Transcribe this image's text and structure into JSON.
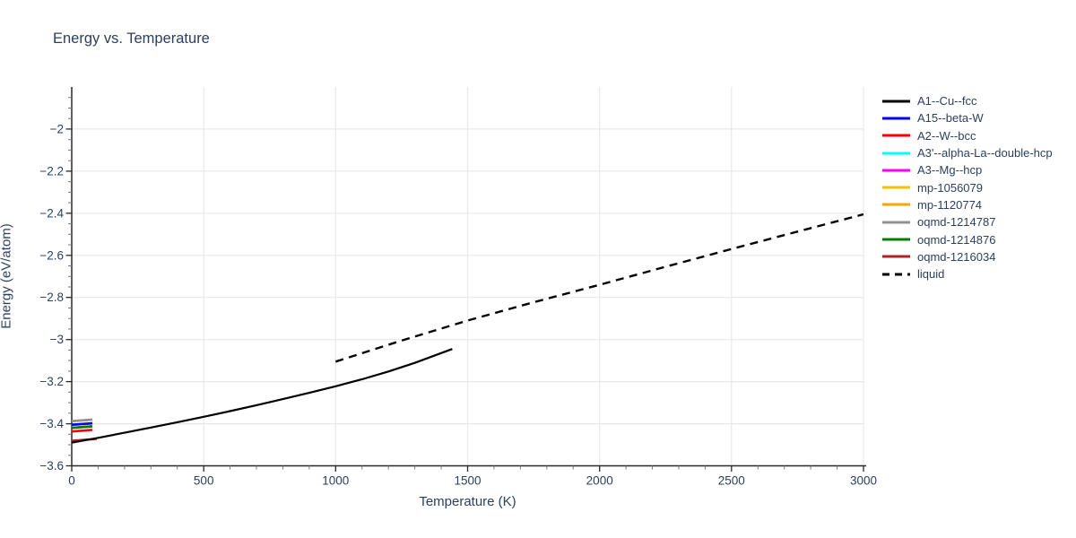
{
  "chart_data": {
    "type": "line",
    "title": "Energy vs. Temperature",
    "xlabel": "Temperature (K)",
    "ylabel": "Energy (eV/atom)",
    "xlim": [
      0,
      3000
    ],
    "ylim": [
      -3.6,
      -1.8
    ],
    "grid": true,
    "legend_position": "top-right",
    "x_ticks": [
      0,
      500,
      1000,
      1500,
      2000,
      2500,
      3000
    ],
    "x_tick_labels": [
      "0",
      "500",
      "1000",
      "1500",
      "2000",
      "2500",
      "3000"
    ],
    "x_minor_step": 100,
    "y_ticks": [
      -3.6,
      -3.4,
      -3.2,
      -3,
      -2.8,
      -2.6,
      -2.4,
      -2.2,
      -2
    ],
    "y_tick_labels": [
      "−3.6",
      "−3.4",
      "−3.2",
      "−3",
      "−2.8",
      "−2.6",
      "−2.4",
      "−2.2",
      "−2"
    ],
    "y_minor_step": 0.05,
    "axis_color": "#2a2a2a",
    "grid_color": "#e8e8e8",
    "text_color": "#2a3f5f",
    "draw_order": [
      3,
      4,
      5,
      6,
      7,
      1,
      8,
      2,
      9,
      0,
      10
    ],
    "series": [
      {
        "name": "A1--Cu--fcc",
        "color": "#000000",
        "dash": "solid",
        "points": [
          [
            0,
            -3.49
          ],
          [
            100,
            -3.467
          ],
          [
            200,
            -3.443
          ],
          [
            300,
            -3.418
          ],
          [
            400,
            -3.393
          ],
          [
            500,
            -3.367
          ],
          [
            600,
            -3.34
          ],
          [
            700,
            -3.312
          ],
          [
            800,
            -3.283
          ],
          [
            900,
            -3.253
          ],
          [
            1000,
            -3.222
          ],
          [
            1100,
            -3.189
          ],
          [
            1200,
            -3.152
          ],
          [
            1300,
            -3.111
          ],
          [
            1442,
            -3.045
          ]
        ]
      },
      {
        "name": "A15--beta-W",
        "color": "#0000ff",
        "dash": "solid",
        "points": [
          [
            0,
            -3.405
          ],
          [
            78,
            -3.398
          ]
        ]
      },
      {
        "name": "A2--W--bcc",
        "color": "#ff0000",
        "dash": "solid",
        "points": [
          [
            0,
            -3.437
          ],
          [
            78,
            -3.429
          ]
        ]
      },
      {
        "name": "A3'--alpha-La--double-hcp",
        "color": "#00ffff",
        "dash": "solid",
        "points": [
          [
            0,
            -3.405
          ],
          [
            78,
            -3.398
          ]
        ]
      },
      {
        "name": "A3--Mg--hcp",
        "color": "#ff00ff",
        "dash": "solid",
        "points": [
          [
            0,
            -3.42
          ],
          [
            78,
            -3.413
          ]
        ]
      },
      {
        "name": "mp-1056079",
        "color": "#eec500",
        "dash": "solid",
        "points": [
          [
            0,
            -3.406
          ],
          [
            78,
            -3.399
          ]
        ]
      },
      {
        "name": "mp-1120774",
        "color": "#ffa500",
        "dash": "solid",
        "points": [
          [
            0,
            -3.388
          ],
          [
            78,
            -3.381
          ]
        ]
      },
      {
        "name": "oqmd-1214787",
        "color": "#909090",
        "dash": "solid",
        "points": [
          [
            0,
            -3.388
          ],
          [
            78,
            -3.38
          ]
        ]
      },
      {
        "name": "oqmd-1214876",
        "color": "#008000",
        "dash": "solid",
        "points": [
          [
            0,
            -3.42
          ],
          [
            78,
            -3.412
          ]
        ]
      },
      {
        "name": "oqmd-1216034",
        "color": "#b22222",
        "dash": "solid",
        "points": [
          [
            0,
            -3.481
          ],
          [
            95,
            -3.472
          ]
        ]
      },
      {
        "name": "liquid",
        "color": "#000000",
        "dash": "dash",
        "points": [
          [
            1000,
            -3.105
          ],
          [
            1250,
            -3.005
          ],
          [
            1500,
            -2.91
          ],
          [
            1750,
            -2.823
          ],
          [
            2000,
            -2.74
          ],
          [
            2250,
            -2.654
          ],
          [
            2500,
            -2.57
          ],
          [
            2750,
            -2.487
          ],
          [
            3000,
            -2.405
          ]
        ]
      }
    ]
  }
}
